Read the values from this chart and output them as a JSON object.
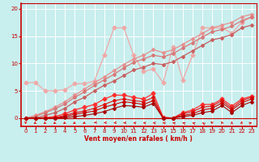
{
  "xlabel": "Vent moyen/en rafales ( km/h )",
  "xlim": [
    -0.5,
    23.5
  ],
  "ylim": [
    -1.5,
    21
  ],
  "yticks": [
    0,
    5,
    10,
    15,
    20
  ],
  "xticks": [
    0,
    1,
    2,
    3,
    4,
    5,
    6,
    7,
    8,
    9,
    10,
    11,
    12,
    13,
    14,
    15,
    16,
    17,
    18,
    19,
    20,
    21,
    22,
    23
  ],
  "bg_color": "#c8eeee",
  "grid_color": "#b0dede",
  "lines": [
    {
      "x": [
        0,
        1,
        2,
        3,
        4,
        5,
        6,
        7,
        8,
        9,
        10,
        11,
        12,
        13,
        14,
        15,
        16,
        17,
        18,
        19,
        20,
        21,
        22,
        23
      ],
      "y": [
        6.5,
        6.5,
        5.0,
        5.0,
        5.2,
        6.3,
        6.3,
        6.8,
        11.5,
        16.5,
        16.5,
        11.5,
        8.5,
        9.0,
        6.5,
        13.0,
        7.0,
        11.5,
        16.5,
        16.5,
        16.5,
        15.5,
        17.5,
        18.5
      ],
      "color": "#f0a8a8",
      "lw": 0.9,
      "marker": "D",
      "ms": 2.5
    },
    {
      "x": [
        0,
        1,
        2,
        3,
        4,
        5,
        6,
        7,
        8,
        9,
        10,
        11,
        12,
        13,
        14,
        15,
        16,
        17,
        18,
        19,
        20,
        21,
        22,
        23
      ],
      "y": [
        0.0,
        0.5,
        1.2,
        2.0,
        3.0,
        4.2,
        5.3,
        6.5,
        7.5,
        8.7,
        9.8,
        10.8,
        11.5,
        12.5,
        12.0,
        12.5,
        13.5,
        14.5,
        15.5,
        16.5,
        17.0,
        17.5,
        18.5,
        19.0
      ],
      "color": "#e89090",
      "lw": 0.9,
      "marker": "D",
      "ms": 2.0
    },
    {
      "x": [
        0,
        1,
        2,
        3,
        4,
        5,
        6,
        7,
        8,
        9,
        10,
        11,
        12,
        13,
        14,
        15,
        16,
        17,
        18,
        19,
        20,
        21,
        22,
        23
      ],
      "y": [
        0.0,
        0.3,
        1.0,
        1.7,
        2.6,
        3.8,
        4.8,
        6.0,
        7.0,
        8.0,
        9.2,
        10.2,
        10.8,
        11.5,
        11.2,
        11.8,
        12.8,
        13.8,
        14.8,
        15.8,
        16.2,
        16.8,
        17.8,
        18.5
      ],
      "color": "#d87878",
      "lw": 0.9,
      "marker": "D",
      "ms": 2.0
    },
    {
      "x": [
        0,
        1,
        2,
        3,
        4,
        5,
        6,
        7,
        8,
        9,
        10,
        11,
        12,
        13,
        14,
        15,
        16,
        17,
        18,
        19,
        20,
        21,
        22,
        23
      ],
      "y": [
        0.0,
        0.0,
        0.5,
        1.0,
        1.8,
        3.0,
        3.8,
        5.0,
        6.0,
        6.8,
        7.8,
        8.8,
        9.3,
        10.0,
        9.8,
        10.3,
        11.3,
        12.3,
        13.3,
        14.3,
        14.7,
        15.3,
        16.5,
        17.0
      ],
      "color": "#c86060",
      "lw": 0.9,
      "marker": "D",
      "ms": 2.0
    },
    {
      "x": [
        0,
        1,
        2,
        3,
        4,
        5,
        6,
        7,
        8,
        9,
        10,
        11,
        12,
        13,
        14,
        15,
        16,
        17,
        18,
        19,
        20,
        21,
        22,
        23
      ],
      "y": [
        0,
        0,
        0.1,
        0.3,
        0.8,
        1.5,
        2.0,
        2.5,
        3.5,
        4.2,
        4.2,
        3.8,
        3.5,
        4.5,
        0.2,
        0.0,
        1.0,
        1.5,
        2.5,
        2.5,
        3.5,
        2.2,
        3.5,
        4.0
      ],
      "color": "#ff3030",
      "lw": 0.9,
      "marker": "D",
      "ms": 2.5
    },
    {
      "x": [
        0,
        1,
        2,
        3,
        4,
        5,
        6,
        7,
        8,
        9,
        10,
        11,
        12,
        13,
        14,
        15,
        16,
        17,
        18,
        19,
        20,
        21,
        22,
        23
      ],
      "y": [
        0,
        0,
        0.0,
        0.1,
        0.5,
        1.0,
        1.3,
        1.8,
        2.5,
        3.2,
        3.5,
        3.2,
        3.0,
        3.8,
        0.0,
        0.0,
        0.8,
        1.2,
        2.0,
        2.2,
        3.2,
        1.8,
        3.2,
        3.8
      ],
      "color": "#e01010",
      "lw": 0.8,
      "marker": "D",
      "ms": 2.0
    },
    {
      "x": [
        0,
        1,
        2,
        3,
        4,
        5,
        6,
        7,
        8,
        9,
        10,
        11,
        12,
        13,
        14,
        15,
        16,
        17,
        18,
        19,
        20,
        21,
        22,
        23
      ],
      "y": [
        0,
        0,
        0.0,
        0.0,
        0.3,
        0.7,
        1.0,
        1.3,
        2.0,
        2.5,
        3.0,
        2.8,
        2.5,
        3.2,
        0.0,
        0.0,
        0.5,
        0.8,
        1.5,
        1.8,
        2.8,
        1.5,
        2.8,
        3.5
      ],
      "color": "#cc0000",
      "lw": 0.8,
      "marker": "D",
      "ms": 2.0
    },
    {
      "x": [
        0,
        1,
        2,
        3,
        4,
        5,
        6,
        7,
        8,
        9,
        10,
        11,
        12,
        13,
        14,
        15,
        16,
        17,
        18,
        19,
        20,
        21,
        22,
        23
      ],
      "y": [
        0,
        0,
        0,
        0,
        0.1,
        0.3,
        0.5,
        0.8,
        1.2,
        1.8,
        2.3,
        2.2,
        2.0,
        2.7,
        0,
        0,
        0.3,
        0.5,
        1.0,
        1.3,
        2.3,
        1.0,
        2.3,
        3.0
      ],
      "color": "#aa0000",
      "lw": 0.8,
      "marker": "D",
      "ms": 2.0
    }
  ],
  "arrow_angles_deg": [
    270,
    225,
    225,
    225,
    225,
    225,
    225,
    200,
    190,
    185,
    180,
    170,
    170,
    170,
    170,
    160,
    155,
    150,
    140,
    130,
    110,
    90,
    80,
    20
  ]
}
